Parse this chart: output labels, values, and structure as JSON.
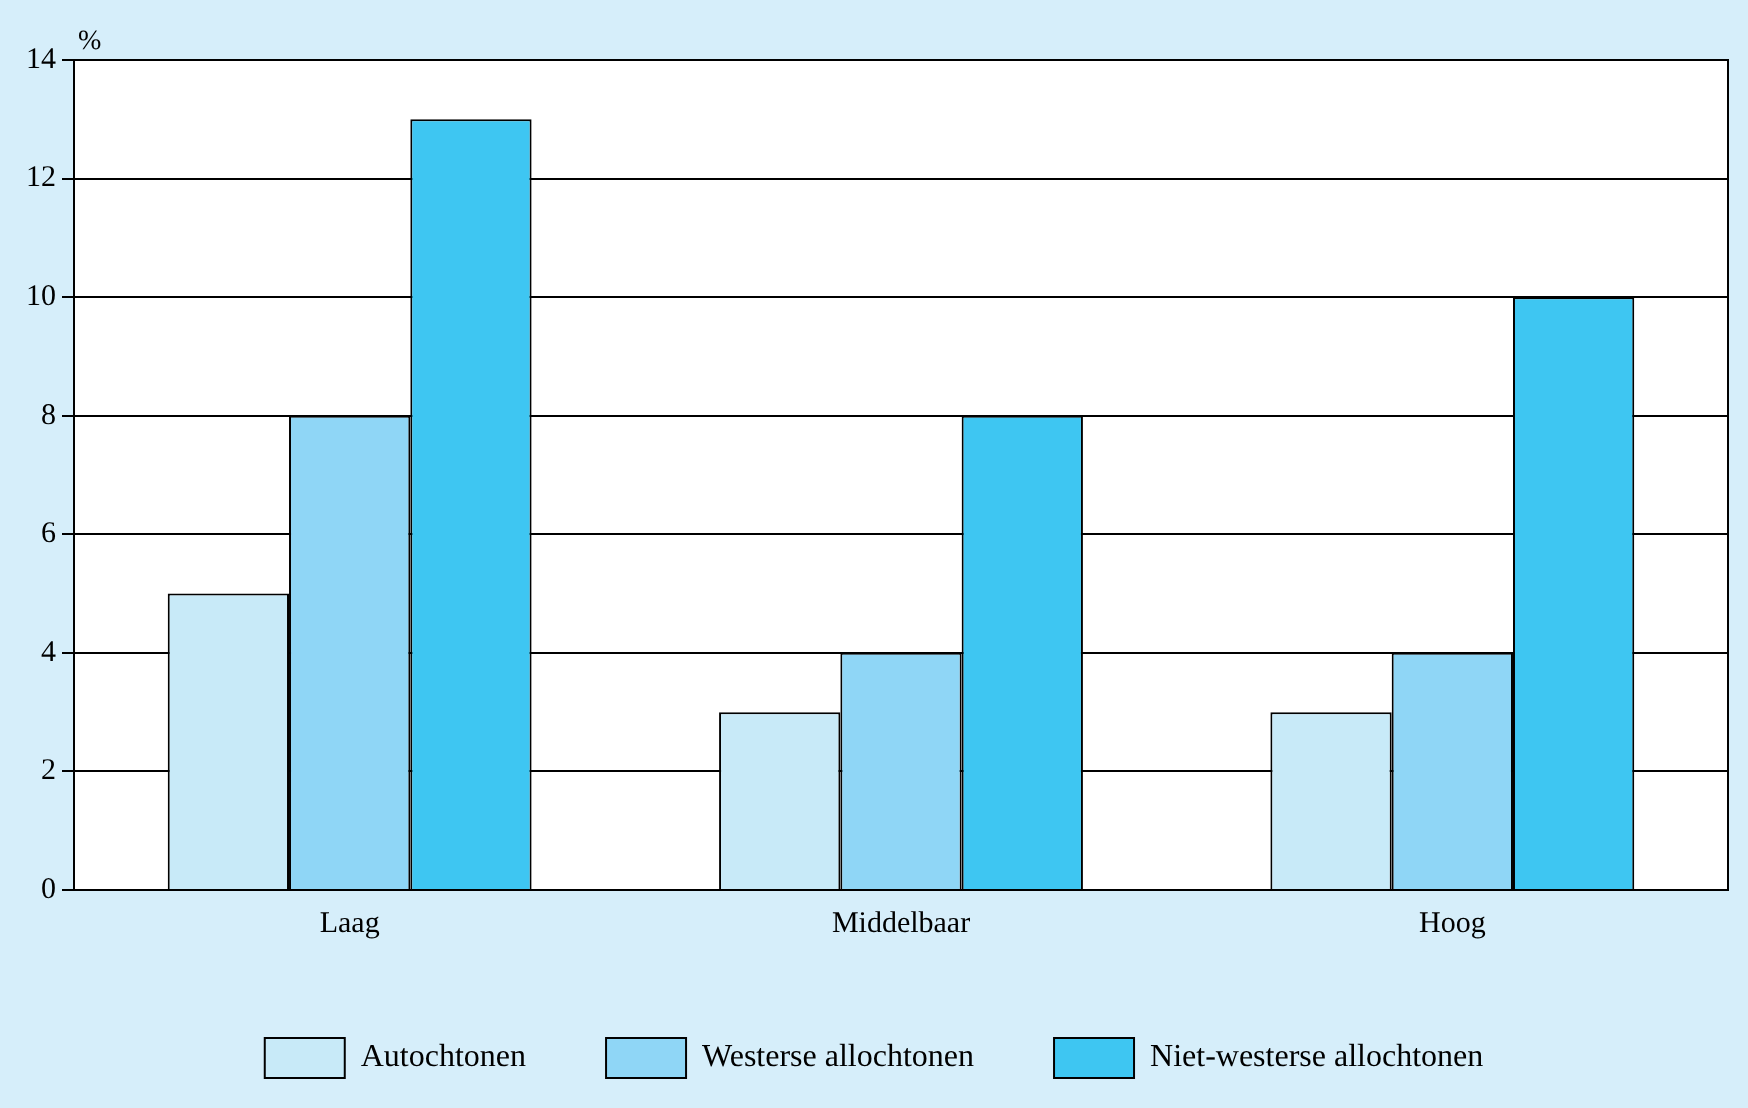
{
  "chart_data": {
    "type": "bar",
    "ylabel": "%",
    "categories": [
      "Laag",
      "Middelbaar",
      "Hoog"
    ],
    "series": [
      {
        "name": "Autochtonen",
        "color": "#c8eaf8",
        "values": [
          5,
          3,
          3
        ]
      },
      {
        "name": "Westerse allochtonen",
        "color": "#8fd6f6",
        "values": [
          8,
          4,
          4
        ]
      },
      {
        "name": "Niet-westerse allochtonen",
        "color": "#3ec6f2",
        "values": [
          13,
          8,
          10
        ]
      }
    ],
    "ylim": [
      0,
      14
    ],
    "yticks": [
      0,
      2,
      4,
      6,
      8,
      10,
      12,
      14
    ],
    "grid": "y",
    "legend": "bottom"
  }
}
